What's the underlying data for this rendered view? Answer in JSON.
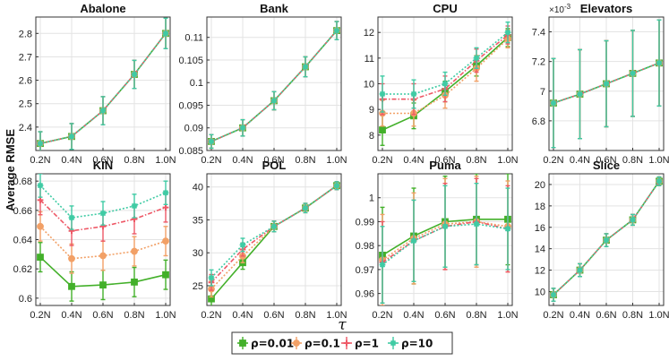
{
  "figure": {
    "ylabel": "Average RMSE",
    "xlabel": "τ",
    "legend_placement": "bottom-center",
    "legend": [
      {
        "label": "ρ=0.01",
        "color": "#43b02a",
        "marker": "square",
        "dash": "solid"
      },
      {
        "label": "ρ=0.1",
        "color": "#f2a066",
        "marker": "circle",
        "dash": "dotted"
      },
      {
        "label": "ρ=1",
        "color": "#ee5866",
        "marker": "plus",
        "dash": "dashdot"
      },
      {
        "label": "ρ=10",
        "color": "#3fcba4",
        "marker": "asterisk",
        "dash": "dotted"
      }
    ]
  },
  "chart_data": [
    {
      "type": "line",
      "title": "Abalone",
      "x": [
        "0.2N",
        "0.4N",
        "0.6N",
        "0.8N",
        "1.0N"
      ],
      "ylim": [
        2.3,
        2.87
      ],
      "yticks": [
        2.4,
        2.5,
        2.6,
        2.7,
        2.8
      ],
      "yticklabels": [
        "2.4",
        "2.5",
        "2.6",
        "2.7",
        "2.8"
      ],
      "grid": true,
      "series": [
        {
          "name": "ρ=0.01",
          "values": [
            2.33,
            2.36,
            2.47,
            2.625,
            2.8
          ],
          "errors": [
            0.05,
            0.055,
            0.06,
            0.06,
            0.065
          ]
        },
        {
          "name": "ρ=0.1",
          "values": [
            2.33,
            2.36,
            2.47,
            2.625,
            2.8
          ],
          "errors": [
            0.05,
            0.055,
            0.06,
            0.06,
            0.065
          ]
        },
        {
          "name": "ρ=1",
          "values": [
            2.33,
            2.36,
            2.47,
            2.625,
            2.8
          ],
          "errors": [
            0.05,
            0.055,
            0.06,
            0.06,
            0.065
          ]
        },
        {
          "name": "ρ=10",
          "values": [
            2.33,
            2.36,
            2.47,
            2.625,
            2.8
          ],
          "errors": [
            0.05,
            0.055,
            0.06,
            0.06,
            0.065
          ]
        }
      ]
    },
    {
      "type": "line",
      "title": "Bank",
      "x": [
        "0.2N",
        "0.4N",
        "0.6N",
        "0.8N",
        "1.0N"
      ],
      "ylim": [
        0.085,
        0.1145
      ],
      "yticks": [
        0.085,
        0.09,
        0.095,
        0.1,
        0.105,
        0.11
      ],
      "yticklabels": [
        "0.085",
        "0.09",
        "0.095",
        "0.1",
        "0.105",
        "0.11"
      ],
      "grid": true,
      "series": [
        {
          "name": "ρ=0.01",
          "values": [
            0.087,
            0.09,
            0.096,
            0.1035,
            0.1115
          ],
          "errors": [
            0.0015,
            0.0018,
            0.002,
            0.0022,
            0.002
          ]
        },
        {
          "name": "ρ=0.1",
          "values": [
            0.087,
            0.09,
            0.096,
            0.1035,
            0.1115
          ],
          "errors": [
            0.0015,
            0.0018,
            0.002,
            0.0022,
            0.002
          ]
        },
        {
          "name": "ρ=1",
          "values": [
            0.087,
            0.09,
            0.096,
            0.1035,
            0.1115
          ],
          "errors": [
            0.0015,
            0.0018,
            0.002,
            0.0022,
            0.002
          ]
        },
        {
          "name": "ρ=10",
          "values": [
            0.087,
            0.09,
            0.096,
            0.1035,
            0.1115
          ],
          "errors": [
            0.0015,
            0.0018,
            0.002,
            0.0022,
            0.002
          ]
        }
      ]
    },
    {
      "type": "line",
      "title": "CPU",
      "x": [
        "0.2N",
        "0.4N",
        "0.6N",
        "0.8N",
        "1.0N"
      ],
      "ylim": [
        7.4,
        12.6
      ],
      "yticks": [
        8,
        9,
        10,
        11,
        12
      ],
      "yticklabels": [
        "8",
        "9",
        "10",
        "11",
        "12"
      ],
      "grid": true,
      "series": [
        {
          "name": "ρ=0.01",
          "values": [
            8.2,
            8.75,
            9.7,
            10.7,
            11.8
          ],
          "errors": [
            0.6,
            0.5,
            0.4,
            0.4,
            0.35
          ]
        },
        {
          "name": "ρ=0.1",
          "values": [
            8.85,
            8.85,
            9.55,
            10.6,
            11.75
          ],
          "errors": [
            0.5,
            0.5,
            0.5,
            0.5,
            0.35
          ]
        },
        {
          "name": "ρ=1",
          "values": [
            9.4,
            9.4,
            9.8,
            10.9,
            11.9
          ],
          "errors": [
            0.6,
            0.6,
            0.5,
            0.45,
            0.35
          ]
        },
        {
          "name": "ρ=10",
          "values": [
            9.6,
            9.6,
            10.0,
            11.0,
            12.0
          ],
          "errors": [
            0.7,
            0.55,
            0.45,
            0.4,
            0.4
          ]
        }
      ]
    },
    {
      "type": "line",
      "title": "Elevators",
      "exponent_label": "×10",
      "x": [
        "0.2N",
        "0.4N",
        "0.6N",
        "0.8N",
        "1.0N"
      ],
      "ylim": [
        6.6,
        7.5
      ],
      "yticks": [
        6.8,
        7.0,
        7.2,
        7.4
      ],
      "yticklabels": [
        "6.8",
        "7",
        "7.2",
        "7.4"
      ],
      "grid": true,
      "series": [
        {
          "name": "ρ=0.01",
          "values": [
            6.92,
            6.98,
            7.05,
            7.12,
            7.19
          ],
          "errors": [
            0.3,
            0.3,
            0.29,
            0.29,
            0.29
          ]
        },
        {
          "name": "ρ=0.1",
          "values": [
            6.92,
            6.98,
            7.05,
            7.12,
            7.19
          ],
          "errors": [
            0.3,
            0.3,
            0.29,
            0.29,
            0.29
          ]
        },
        {
          "name": "ρ=1",
          "values": [
            6.92,
            6.98,
            7.05,
            7.12,
            7.19
          ],
          "errors": [
            0.3,
            0.3,
            0.29,
            0.29,
            0.29
          ]
        },
        {
          "name": "ρ=10",
          "values": [
            6.92,
            6.98,
            7.05,
            7.12,
            7.19
          ],
          "errors": [
            0.3,
            0.3,
            0.29,
            0.29,
            0.29
          ]
        }
      ]
    },
    {
      "type": "line",
      "title": "KIN",
      "x": [
        "0.2N",
        "0.4N",
        "0.6N",
        "0.8N",
        "1.0N"
      ],
      "ylim": [
        0.595,
        0.685
      ],
      "yticks": [
        0.6,
        0.62,
        0.64,
        0.66,
        0.68
      ],
      "yticklabels": [
        "0.6",
        "0.62",
        "0.64",
        "0.66",
        "0.68"
      ],
      "grid": true,
      "series": [
        {
          "name": "ρ=0.01",
          "values": [
            0.628,
            0.608,
            0.609,
            0.611,
            0.616
          ],
          "errors": [
            0.01,
            0.01,
            0.01,
            0.01,
            0.01
          ]
        },
        {
          "name": "ρ=0.1",
          "values": [
            0.649,
            0.627,
            0.629,
            0.632,
            0.639
          ],
          "errors": [
            0.01,
            0.01,
            0.01,
            0.01,
            0.01
          ]
        },
        {
          "name": "ρ=1",
          "values": [
            0.667,
            0.646,
            0.649,
            0.654,
            0.662
          ],
          "errors": [
            0.01,
            0.01,
            0.01,
            0.01,
            0.01
          ]
        },
        {
          "name": "ρ=10",
          "values": [
            0.677,
            0.655,
            0.658,
            0.663,
            0.672
          ],
          "errors": [
            0.008,
            0.008,
            0.008,
            0.008,
            0.008
          ]
        }
      ]
    },
    {
      "type": "line",
      "title": "POL",
      "x": [
        "0.2N",
        "0.4N",
        "0.6N",
        "0.8N",
        "1.0N"
      ],
      "ylim": [
        22.0,
        42.0
      ],
      "yticks": [
        25,
        30,
        35,
        40
      ],
      "yticklabels": [
        "25",
        "30",
        "35",
        "40"
      ],
      "grid": true,
      "series": [
        {
          "name": "ρ=0.01",
          "values": [
            23.0,
            28.5,
            34.0,
            36.8,
            40.2
          ],
          "errors": [
            1.2,
            1.0,
            0.8,
            0.7,
            0.6
          ]
        },
        {
          "name": "ρ=0.1",
          "values": [
            24.5,
            29.5,
            34.0,
            36.8,
            40.2
          ],
          "errors": [
            1.2,
            1.0,
            0.8,
            0.7,
            0.6
          ]
        },
        {
          "name": "ρ=1",
          "values": [
            25.5,
            30.5,
            34.0,
            36.8,
            40.2
          ],
          "errors": [
            1.2,
            1.0,
            0.8,
            0.7,
            0.6
          ]
        },
        {
          "name": "ρ=10",
          "values": [
            26.2,
            31.2,
            34.0,
            36.8,
            40.2
          ],
          "errors": [
            1.2,
            1.0,
            0.8,
            0.7,
            0.6
          ]
        }
      ]
    },
    {
      "type": "line",
      "title": "Puma",
      "x": [
        "0.2N",
        "0.4N",
        "0.6N",
        "0.8N",
        "1.0N"
      ],
      "ylim": [
        0.955,
        1.01
      ],
      "yticks": [
        0.96,
        0.97,
        0.98,
        0.99,
        1.0
      ],
      "yticklabels": [
        "0.96",
        "0.97",
        "0.98",
        "0.99",
        "1"
      ],
      "grid": true,
      "series": [
        {
          "name": "ρ=0.01",
          "values": [
            0.976,
            0.984,
            0.99,
            0.991,
            0.991
          ],
          "errors": [
            0.02,
            0.02,
            0.019,
            0.019,
            0.019
          ]
        },
        {
          "name": "ρ=0.1",
          "values": [
            0.974,
            0.983,
            0.989,
            0.99,
            0.988
          ],
          "errors": [
            0.019,
            0.019,
            0.019,
            0.019,
            0.019
          ]
        },
        {
          "name": "ρ=1",
          "values": [
            0.973,
            0.982,
            0.988,
            0.99,
            0.987
          ],
          "errors": [
            0.017,
            0.017,
            0.018,
            0.018,
            0.018
          ]
        },
        {
          "name": "ρ=10",
          "values": [
            0.972,
            0.982,
            0.988,
            0.989,
            0.987
          ],
          "errors": [
            0.016,
            0.017,
            0.017,
            0.017,
            0.017
          ]
        }
      ]
    },
    {
      "type": "line",
      "title": "Slice",
      "x": [
        "0.2N",
        "0.4N",
        "0.6N",
        "0.8N",
        "1.0N"
      ],
      "ylim": [
        8.7,
        21.0
      ],
      "yticks": [
        10,
        12,
        14,
        16,
        18,
        20
      ],
      "yticklabels": [
        "10",
        "12",
        "14",
        "16",
        "18",
        "20"
      ],
      "grid": true,
      "series": [
        {
          "name": "ρ=0.01",
          "values": [
            9.7,
            12.0,
            14.8,
            16.7,
            20.3
          ],
          "errors": [
            0.6,
            0.6,
            0.6,
            0.5,
            0.4
          ]
        },
        {
          "name": "ρ=0.1",
          "values": [
            9.7,
            12.0,
            14.8,
            16.7,
            20.3
          ],
          "errors": [
            0.6,
            0.6,
            0.6,
            0.5,
            0.4
          ]
        },
        {
          "name": "ρ=1",
          "values": [
            9.7,
            12.0,
            14.8,
            16.7,
            20.3
          ],
          "errors": [
            0.6,
            0.6,
            0.6,
            0.5,
            0.4
          ]
        },
        {
          "name": "ρ=10",
          "values": [
            9.7,
            12.0,
            14.8,
            16.7,
            20.3
          ],
          "errors": [
            0.6,
            0.6,
            0.6,
            0.5,
            0.4
          ]
        }
      ]
    }
  ]
}
